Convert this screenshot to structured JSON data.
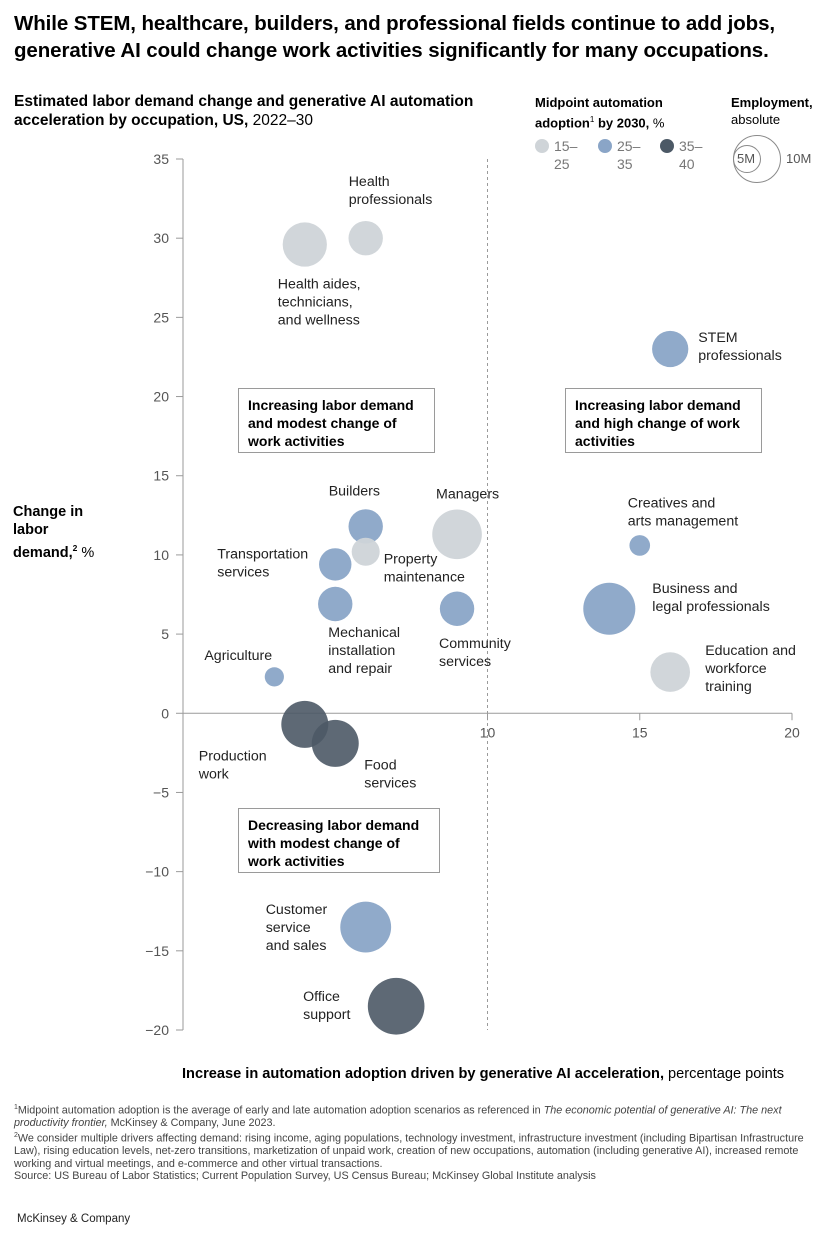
{
  "headline": "While STEM, healthcare, builders, and professional fields continue to add jobs, generative AI could change work activities significantly for many occupations.",
  "subtitle_bold": "Estimated labor demand change and generative AI automation acceleration by occupation, US,",
  "subtitle_regular": " 2022–30",
  "legend_color": {
    "title_bold_1": "Midpoint automation adoption",
    "footnote_marker": "1",
    "title_bold_2": " by 2030,",
    "title_unit": " %",
    "items": [
      {
        "line1": "15–",
        "line2": "25",
        "color": "#cfd4d8"
      },
      {
        "line1": "25–",
        "line2": "35",
        "color": "#8aa5c7"
      },
      {
        "line1": "35–",
        "line2": "40",
        "color": "#4c5966"
      }
    ]
  },
  "legend_size": {
    "title_bold": "Employment,",
    "title_regular": "absolute",
    "small_label": "5M",
    "large_label": "10M"
  },
  "quadrant_boxes": [
    {
      "text": "Increasing labor demand and modest change of work activities"
    },
    {
      "text": "Increasing labor demand and high change of work activities"
    },
    {
      "text": "Decreasing labor demand with modest change of work activities"
    }
  ],
  "y_axis_title_bold": "Change in labor demand,",
  "y_axis_footnote_marker": "2",
  "y_axis_unit": " %",
  "x_axis_title_bold": "Increase in automation adoption driven by generative AI acceleration,",
  "x_axis_title_regular": " percentage points",
  "chart_data": {
    "type": "scatter",
    "x": {
      "min": 0,
      "max": 20,
      "ticks": [
        10,
        15,
        20
      ]
    },
    "y": {
      "min": -20,
      "max": 35,
      "ticks": [
        35,
        30,
        25,
        20,
        15,
        10,
        5,
        0,
        -5,
        -10,
        -15,
        -20
      ]
    },
    "tick_labels_y": [
      "35",
      "30",
      "25",
      "20",
      "15",
      "10",
      "5",
      "0",
      "−5",
      "−10",
      "−15",
      "−20"
    ],
    "tick_labels_x": [
      "10",
      "15",
      "20"
    ],
    "divider_x": 10,
    "points": [
      {
        "label": [
          "Health",
          "professionals"
        ],
        "x": 6,
        "y": 30,
        "adoption": "15–25",
        "employment_m": 4
      },
      {
        "label": [
          "Health aides,",
          "technicians,",
          "and wellness"
        ],
        "x": 4,
        "y": 29.6,
        "adoption": "15–25",
        "employment_m": 7
      },
      {
        "label": [
          "STEM",
          "professionals"
        ],
        "x": 16,
        "y": 23,
        "adoption": "25–35",
        "employment_m": 4.5
      },
      {
        "label": [
          "Builders"
        ],
        "x": 6,
        "y": 11.8,
        "adoption": "25–35",
        "employment_m": 4
      },
      {
        "label": [
          "Managers"
        ],
        "x": 9,
        "y": 11.3,
        "adoption": "15–25",
        "employment_m": 9
      },
      {
        "label": [
          "Property",
          "maintenance"
        ],
        "x": 6,
        "y": 10.2,
        "adoption": "15–25",
        "employment_m": 2.5
      },
      {
        "label": [
          "Transportation",
          "services"
        ],
        "x": 5,
        "y": 9.4,
        "adoption": "25–35",
        "employment_m": 3.5
      },
      {
        "label": [
          "Mechanical",
          "installation",
          "and repair"
        ],
        "x": 5,
        "y": 6.9,
        "adoption": "25–35",
        "employment_m": 4
      },
      {
        "label": [
          "Community",
          "services"
        ],
        "x": 9,
        "y": 6.6,
        "adoption": "25–35",
        "employment_m": 4
      },
      {
        "label": [
          "Creatives and",
          "arts management"
        ],
        "x": 15,
        "y": 10.6,
        "adoption": "25–35",
        "employment_m": 1.2
      },
      {
        "label": [
          "Business and",
          "legal professionals"
        ],
        "x": 14,
        "y": 6.6,
        "adoption": "25–35",
        "employment_m": 10
      },
      {
        "label": [
          "Education and",
          "workforce",
          "training"
        ],
        "x": 16,
        "y": 2.6,
        "adoption": "15–25",
        "employment_m": 5.5
      },
      {
        "label": [
          "Agriculture"
        ],
        "x": 3,
        "y": 2.3,
        "adoption": "25–35",
        "employment_m": 1
      },
      {
        "label": [
          "Production",
          "work"
        ],
        "x": 4,
        "y": -0.7,
        "adoption": "35–40",
        "employment_m": 8
      },
      {
        "label": [
          "Food",
          "services"
        ],
        "x": 5,
        "y": -1.9,
        "adoption": "35–40",
        "employment_m": 8
      },
      {
        "label": [
          "Customer",
          "service",
          "and sales"
        ],
        "x": 6,
        "y": -13.5,
        "adoption": "25–35",
        "employment_m": 9.5
      },
      {
        "label": [
          "Office",
          "support"
        ],
        "x": 7,
        "y": -18.5,
        "adoption": "35–40",
        "employment_m": 12
      }
    ]
  },
  "footnotes": {
    "fn1_marker": "1",
    "fn1_text": "Midpoint automation adoption is the average of early and late automation adoption scenarios as referenced in ",
    "fn1_italic": "The economic potential of generative AI: The next productivity frontier,",
    "fn1_tail": " McKinsey & Company, June 2023.",
    "fn2_marker": "2",
    "fn2_text": "We consider multiple drivers affecting demand: rising income, aging populations, technology investment, infrastructure investment (including Bipartisan Infrastructure Law), rising education levels, net-zero transitions, marketization of unpaid work, creation of new occupations, automation (including generative AI), increased remote working and virtual meetings, and e-commerce and other virtual transactions.",
    "source": "Source: US Bureau of Labor Statistics; Current Population Survey, US Census Bureau; McKinsey Global Institute analysis"
  },
  "brand": "McKinsey & Company"
}
